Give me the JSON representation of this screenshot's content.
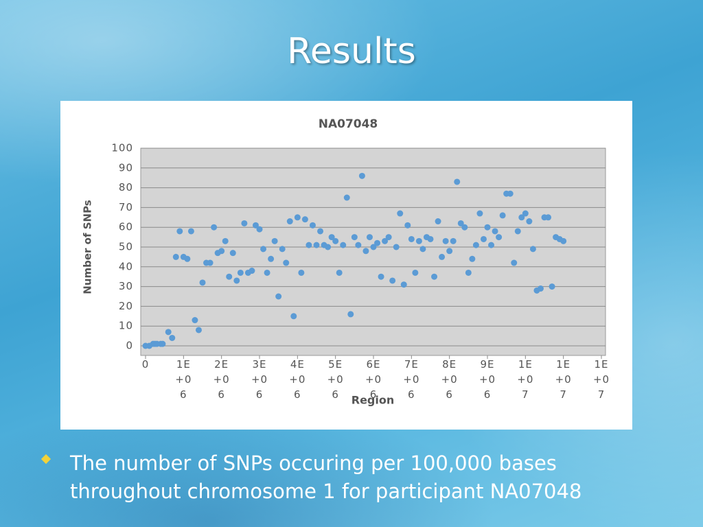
{
  "slide_title": "Results",
  "bullet": "The number of SNPs occuring per 100,000 bases throughout chromosome 1 for participant NA07048",
  "chart_data": {
    "type": "scatter",
    "title": "NA07048",
    "x_label": "Region",
    "y_label": "Number of SNPs",
    "color": "#5b9bd5",
    "grid": true,
    "xlim": [
      0,
      12000000
    ],
    "xticks": [
      0,
      {
        "value": 1000000,
        "label": "1E+06"
      },
      {
        "value": 2000000,
        "label": "2E+06"
      },
      {
        "value": 3000000,
        "label": "3E+06"
      },
      {
        "value": 4000000,
        "label": "4E+06"
      },
      {
        "value": 5000000,
        "label": "5E+06"
      },
      {
        "value": 6000000,
        "label": "6E+06"
      },
      {
        "value": 7000000,
        "label": "7E+06"
      },
      {
        "value": 8000000,
        "label": "8E+06"
      },
      {
        "value": 9000000,
        "label": "9E+06"
      },
      {
        "value": 10000000,
        "label": "1E+07"
      },
      {
        "value": 11000000,
        "label": "1E+07"
      },
      {
        "value": 12000000,
        "label": "1E+07"
      }
    ],
    "ylim": [
      0,
      100
    ],
    "yticks": [
      0,
      10,
      20,
      30,
      40,
      50,
      60,
      70,
      80,
      90,
      100
    ],
    "x": [
      0,
      100000,
      200000,
      250000,
      300000,
      400000,
      450000,
      600000,
      700000,
      800000,
      900000,
      1000000,
      1100000,
      1200000,
      1300000,
      1400000,
      1500000,
      1600000,
      1700000,
      1800000,
      1900000,
      2000000,
      2100000,
      2200000,
      2300000,
      2400000,
      2500000,
      2600000,
      2700000,
      2800000,
      2900000,
      3000000,
      3100000,
      3200000,
      3300000,
      3400000,
      3500000,
      3600000,
      3700000,
      3800000,
      3900000,
      4000000,
      4100000,
      4200000,
      4300000,
      4400000,
      4500000,
      4600000,
      4700000,
      4800000,
      4900000,
      5000000,
      5100000,
      5200000,
      5300000,
      5400000,
      5500000,
      5600000,
      5700000,
      5800000,
      5900000,
      6000000,
      6100000,
      6200000,
      6300000,
      6400000,
      6500000,
      6600000,
      6700000,
      6800000,
      6900000,
      7000000,
      7100000,
      7200000,
      7300000,
      7400000,
      7500000,
      7600000,
      7700000,
      7800000,
      7900000,
      8000000,
      8100000,
      8200000,
      8300000,
      8400000,
      8500000,
      8600000,
      8700000,
      8800000,
      8900000,
      9000000,
      9100000,
      9200000,
      9300000,
      9400000,
      9500000,
      9600000,
      9700000,
      9800000,
      9900000,
      10000000,
      10100000,
      10200000,
      10300000,
      10400000,
      10500000,
      10600000,
      10700000,
      10800000,
      10900000,
      11000000
    ],
    "values": [
      0,
      0,
      1,
      1,
      1,
      1,
      1,
      7,
      4,
      45,
      58,
      45,
      44,
      58,
      13,
      8,
      32,
      42,
      42,
      60,
      47,
      48,
      53,
      35,
      47,
      33,
      37,
      62,
      37,
      38,
      61,
      59,
      49,
      37,
      44,
      53,
      25,
      49,
      42,
      63,
      15,
      65,
      37,
      64,
      51,
      61,
      51,
      58,
      51,
      50,
      55,
      53,
      37,
      51,
      75,
      16,
      55,
      51,
      86,
      48,
      55,
      50,
      52,
      35,
      53,
      55,
      33,
      50,
      67,
      31,
      61,
      54,
      37,
      53,
      49,
      55,
      54,
      35,
      63,
      45,
      53,
      48,
      53,
      83,
      62,
      60,
      37,
      44,
      51,
      67,
      54,
      60,
      51,
      58,
      55,
      66,
      77,
      77,
      42,
      58,
      65,
      67,
      63,
      49,
      28,
      29,
      65,
      65,
      30,
      55,
      54,
      53
    ]
  }
}
